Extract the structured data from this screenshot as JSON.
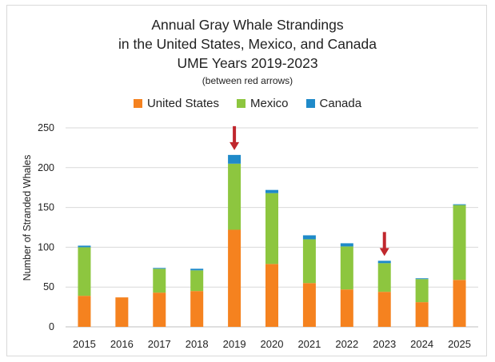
{
  "chart_data": {
    "type": "bar",
    "stacked": true,
    "title_lines": [
      "Annual Gray Whale Strandings",
      "in the United States, Mexico, and Canada",
      "UME Years 2019-2023"
    ],
    "subtitle": "(between red arrows)",
    "xlabel": "",
    "ylabel": "Number of Stranded Whales",
    "ylim": [
      0,
      250
    ],
    "yticks": [
      0,
      50,
      100,
      150,
      200,
      250
    ],
    "grid": true,
    "legend_position": "top",
    "categories": [
      "2015",
      "2016",
      "2017",
      "2018",
      "2019",
      "2020",
      "2021",
      "2022",
      "2023",
      "2024",
      "2025"
    ],
    "series": [
      {
        "name": "United States",
        "color": "#f5821f",
        "values": [
          39,
          37,
          43,
          45,
          122,
          79,
          55,
          47,
          44,
          31,
          59
        ]
      },
      {
        "name": "Mexico",
        "color": "#8dc63f",
        "values": [
          61,
          0,
          30,
          26,
          83,
          89,
          55,
          54,
          36,
          29,
          94
        ]
      },
      {
        "name": "Canada",
        "color": "#1f8ac9",
        "values": [
          2,
          0,
          1,
          2,
          11,
          4,
          5,
          4,
          3,
          1,
          1
        ]
      }
    ],
    "markers": [
      {
        "category": "2019",
        "type": "arrow-down",
        "color": "#c0272d"
      },
      {
        "category": "2023",
        "type": "arrow-down",
        "color": "#c0272d"
      }
    ]
  }
}
